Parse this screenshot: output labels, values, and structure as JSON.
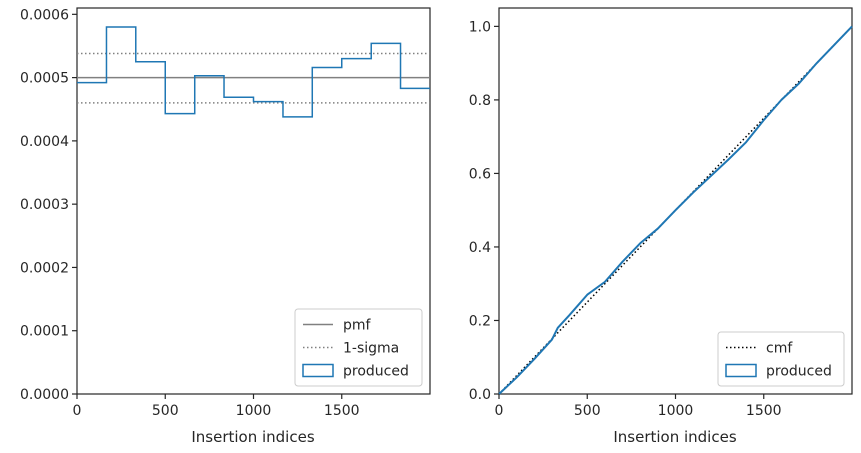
{
  "chart_data": [
    {
      "type": "line",
      "xlabel": "Insertion indices",
      "ylabel": "",
      "xlim": [
        0,
        2000
      ],
      "ylim": [
        0,
        0.00061
      ],
      "xticks": [
        0,
        500,
        1000,
        1500
      ],
      "xtick_labels": [
        "0",
        "500",
        "1000",
        "1500"
      ],
      "yticks": [
        0,
        0.0001,
        0.0002,
        0.0003,
        0.0004,
        0.0005,
        0.0006
      ],
      "ytick_labels": [
        "0.0000",
        "0.0001",
        "0.0002",
        "0.0003",
        "0.0004",
        "0.0005",
        "0.0006"
      ],
      "grid": false,
      "legend_position": "lower-right",
      "pmf": 0.0005,
      "sigma_band": [
        0.00046,
        0.000538
      ],
      "histogram": {
        "bin_edges": [
          0,
          167,
          333,
          500,
          667,
          833,
          1000,
          1167,
          1333,
          1500,
          1667,
          1833,
          2000
        ],
        "values": [
          0.000492,
          0.00058,
          0.000525,
          0.000443,
          0.000503,
          0.000469,
          0.000462,
          0.000438,
          0.000516,
          0.00053,
          0.000554,
          0.000483
        ]
      },
      "legend": [
        {
          "label": "pmf",
          "style": "solid",
          "color": "#808080"
        },
        {
          "label": "1-sigma",
          "style": "dotted",
          "color": "#808080"
        },
        {
          "label": "produced",
          "style": "box",
          "color": "#1f77b4"
        }
      ]
    },
    {
      "type": "line",
      "xlabel": "Insertion indices",
      "ylabel": "",
      "xlim": [
        0,
        2000
      ],
      "ylim": [
        0,
        1.05
      ],
      "xticks": [
        0,
        500,
        1000,
        1500
      ],
      "xtick_labels": [
        "0",
        "500",
        "1000",
        "1500"
      ],
      "yticks": [
        0,
        0.2,
        0.4,
        0.6,
        0.8,
        1.0
      ],
      "ytick_labels": [
        "0.0",
        "0.2",
        "0.4",
        "0.6",
        "0.8",
        "1.0"
      ],
      "grid": false,
      "legend_position": "lower-right",
      "cmf": {
        "x": [
          0,
          2000
        ],
        "y": [
          0,
          1.0
        ]
      },
      "produced": {
        "x": [
          0,
          100,
          200,
          300,
          333,
          400,
          500,
          600,
          700,
          800,
          900,
          1000,
          1100,
          1200,
          1300,
          1400,
          1500,
          1600,
          1700,
          1800,
          1900,
          2000
        ],
        "y": [
          0,
          0.045,
          0.095,
          0.148,
          0.18,
          0.215,
          0.27,
          0.305,
          0.36,
          0.41,
          0.45,
          0.5,
          0.548,
          0.593,
          0.638,
          0.685,
          0.745,
          0.8,
          0.845,
          0.9,
          0.95,
          1.0
        ]
      },
      "legend": [
        {
          "label": "cmf",
          "style": "dotted",
          "color": "#000000"
        },
        {
          "label": "produced",
          "style": "box",
          "color": "#1f77b4"
        }
      ]
    }
  ]
}
